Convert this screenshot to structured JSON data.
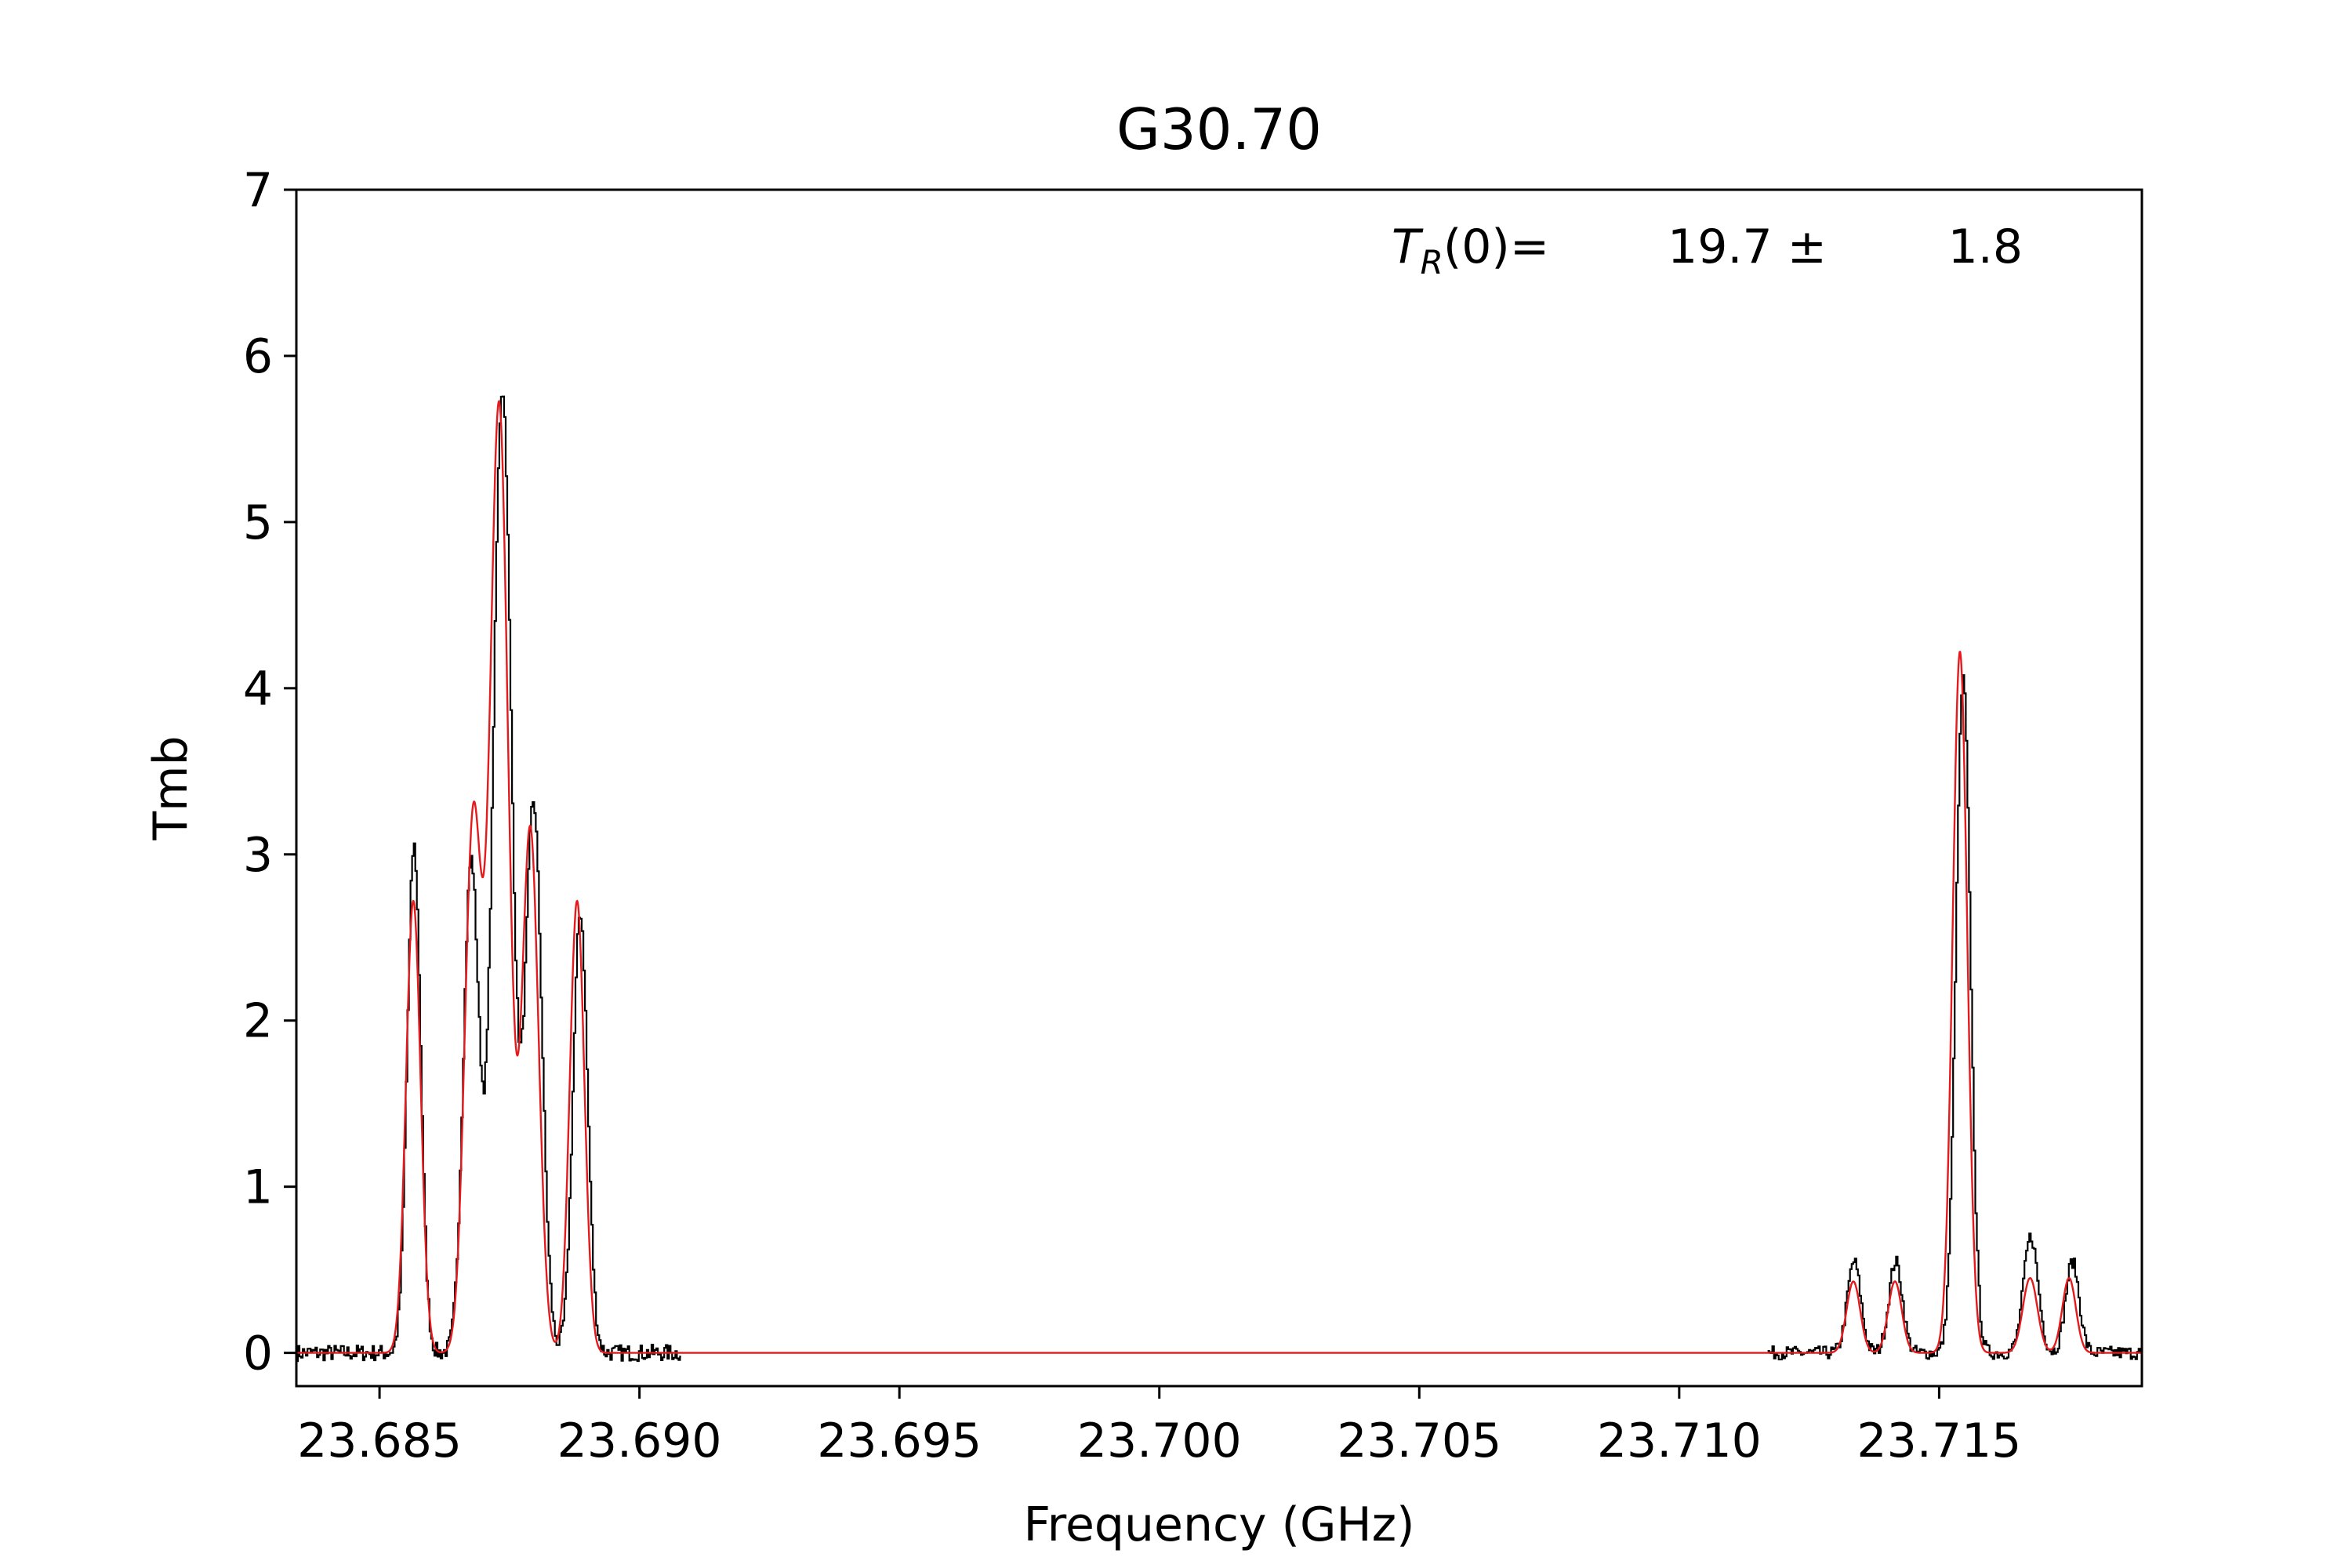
{
  "chart_data": {
    "type": "line",
    "title": "G30.70",
    "xlabel": "Frequency (GHz)",
    "ylabel": "Tmb",
    "xlim": [
      23.6834,
      23.7189
    ],
    "ylim": [
      -0.2,
      7
    ],
    "xticks": [
      23.685,
      23.69,
      23.695,
      23.7,
      23.705,
      23.71,
      23.715
    ],
    "xtick_labels": [
      "23.685",
      "23.690",
      "23.695",
      "23.700",
      "23.705",
      "23.710",
      "23.715"
    ],
    "yticks": [
      0,
      1,
      2,
      3,
      4,
      5,
      6,
      7
    ],
    "ytick_labels": [
      "0",
      "1",
      "2",
      "3",
      "4",
      "5",
      "6",
      "7"
    ],
    "grid": false,
    "annotation": {
      "symbol": "T",
      "subscript": "R",
      "suffix": "(0)=",
      "value": "19.7 ±",
      "error": "1.8"
    },
    "series": [
      {
        "role": "observed",
        "style": "steps",
        "color": "#000000",
        "segments": [
          {
            "x0": 23.6834,
            "x1": 23.6908,
            "noise": 0.05,
            "peaks": [
              [
                23.68565,
                3.05,
                0.00013
              ],
              [
                23.68675,
                2.95,
                0.00015
              ],
              [
                23.68735,
                5.8,
                0.00018
              ],
              [
                23.68795,
                3.3,
                0.00016
              ],
              [
                23.68885,
                2.65,
                0.00014
              ]
            ]
          },
          {
            "x0": 23.7117,
            "x1": 23.7189,
            "noise": 0.04,
            "peaks": [
              [
                23.71335,
                0.55,
                0.00013
              ],
              [
                23.71415,
                0.55,
                0.00013
              ],
              [
                23.71545,
                4.05,
                0.00014
              ],
              [
                23.71675,
                0.7,
                0.00014
              ],
              [
                23.71755,
                0.55,
                0.00013
              ]
            ]
          }
        ]
      },
      {
        "role": "fit",
        "style": "smooth",
        "color": "#e41a1c",
        "x0": 23.6834,
        "x1": 23.7189,
        "peaks": [
          [
            23.68565,
            2.72,
            0.00014
          ],
          [
            23.6868,
            3.18,
            0.00016
          ],
          [
            23.6873,
            5.7,
            0.00018
          ],
          [
            23.6879,
            3.15,
            0.00016
          ],
          [
            23.6888,
            2.72,
            0.00014
          ],
          [
            23.71335,
            0.43,
            0.00013
          ],
          [
            23.71415,
            0.43,
            0.00013
          ],
          [
            23.7154,
            4.22,
            0.00014
          ],
          [
            23.71675,
            0.45,
            0.00014
          ],
          [
            23.7175,
            0.45,
            0.00013
          ]
        ]
      }
    ]
  }
}
